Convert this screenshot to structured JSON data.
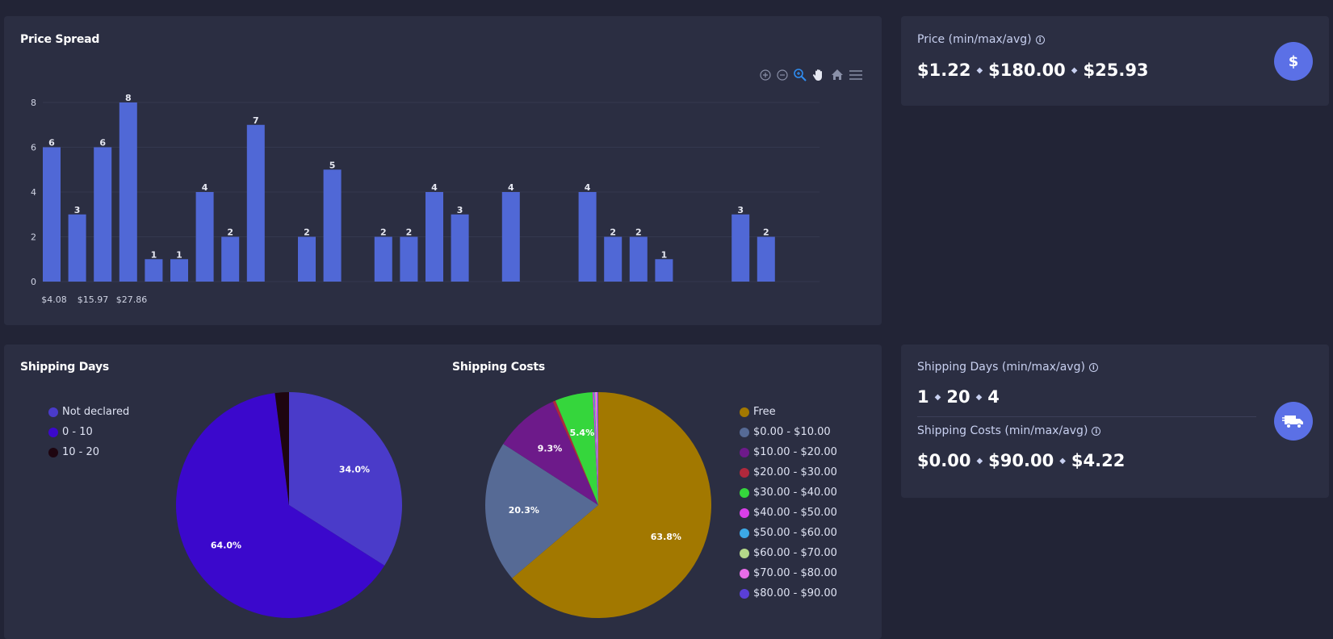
{
  "price_spread": {
    "title": "Price Spread",
    "x_ticks": [
      "$4.08",
      "$15.97",
      "$27.86"
    ],
    "toolbar": [
      "zoom-in-icon",
      "zoom-out-icon",
      "selection-zoom-icon",
      "pan-hand-icon",
      "home-reset-icon",
      "menu-icon"
    ]
  },
  "price_stat": {
    "label": "Price (min/max/avg)",
    "min": "$1.22",
    "max": "$180.00",
    "avg": "$25.93",
    "icon": "dollar-icon"
  },
  "shipping_days_chart": {
    "title": "Shipping Days",
    "legend": [
      {
        "label": "Not declared",
        "color": "#4a3bc9"
      },
      {
        "label": "0 - 10",
        "color": "#3b08cc"
      },
      {
        "label": "10 - 20",
        "color": "#1e0510"
      }
    ]
  },
  "shipping_costs_chart": {
    "title": "Shipping Costs",
    "legend": [
      {
        "label": "Free",
        "color": "#a27800"
      },
      {
        "label": "$0.00 - $10.00",
        "color": "#566a95"
      },
      {
        "label": "$10.00 - $20.00",
        "color": "#6d1a8a"
      },
      {
        "label": "$20.00 - $30.00",
        "color": "#b0283c"
      },
      {
        "label": "$30.00 - $40.00",
        "color": "#35d63c"
      },
      {
        "label": "$40.00 - $50.00",
        "color": "#d93fe8"
      },
      {
        "label": "$50.00 - $60.00",
        "color": "#3ca9e6"
      },
      {
        "label": "$60.00 - $70.00",
        "color": "#b5d98a"
      },
      {
        "label": "$70.00 - $80.00",
        "color": "#e76de8"
      },
      {
        "label": "$80.00 - $90.00",
        "color": "#5a3fd8"
      }
    ]
  },
  "shipping_stat": {
    "days_label": "Shipping Days (min/max/avg)",
    "days_min": "1",
    "days_max": "20",
    "days_avg": "4",
    "costs_label": "Shipping Costs (min/max/avg)",
    "costs_min": "$0.00",
    "costs_max": "$90.00",
    "costs_avg": "$4.22",
    "icon": "truck-icon"
  },
  "chart_data": [
    {
      "type": "bar",
      "title": "Price Spread",
      "values": [
        6,
        3,
        6,
        8,
        1,
        1,
        4,
        2,
        7,
        0,
        2,
        5,
        0,
        2,
        2,
        4,
        3,
        0,
        4,
        0,
        0,
        4,
        2,
        2,
        1,
        0,
        0,
        3,
        2
      ],
      "x_tick_labels": [
        "$4.08",
        "$15.97",
        "$27.86"
      ],
      "y_ticks": [
        0,
        2,
        4,
        6,
        8
      ],
      "ylim": [
        0,
        8
      ],
      "grid": true,
      "color": "#5068d6"
    },
    {
      "type": "pie",
      "title": "Shipping Days",
      "labels": [
        "Not declared",
        "0 - 10",
        "10 - 20"
      ],
      "values": [
        34.0,
        64.0,
        2.0
      ],
      "colors": [
        "#4a3bc9",
        "#3b08cc",
        "#1e0510"
      ],
      "slice_labels": [
        "34.0%",
        "64.0%",
        ""
      ]
    },
    {
      "type": "pie",
      "title": "Shipping Costs",
      "labels": [
        "Free",
        "$0.00 - $10.00",
        "$10.00 - $20.00",
        "$20.00 - $30.00",
        "$30.00 - $40.00",
        "$40.00 - $50.00",
        "$50.00 - $60.00",
        "$60.00 - $70.00",
        "$70.00 - $80.00",
        "$80.00 - $90.00"
      ],
      "values": [
        63.8,
        20.3,
        9.3,
        0.4,
        5.4,
        0.2,
        0.1,
        0.1,
        0.3,
        0.1
      ],
      "colors": [
        "#a27800",
        "#566a95",
        "#6d1a8a",
        "#b0283c",
        "#35d63c",
        "#d93fe8",
        "#3ca9e6",
        "#b5d98a",
        "#e76de8",
        "#5a3fd8"
      ],
      "slice_labels": [
        "63.8%",
        "20.3%",
        "9.3%",
        "",
        "5.4%",
        "",
        "",
        "",
        "",
        ""
      ]
    }
  ]
}
